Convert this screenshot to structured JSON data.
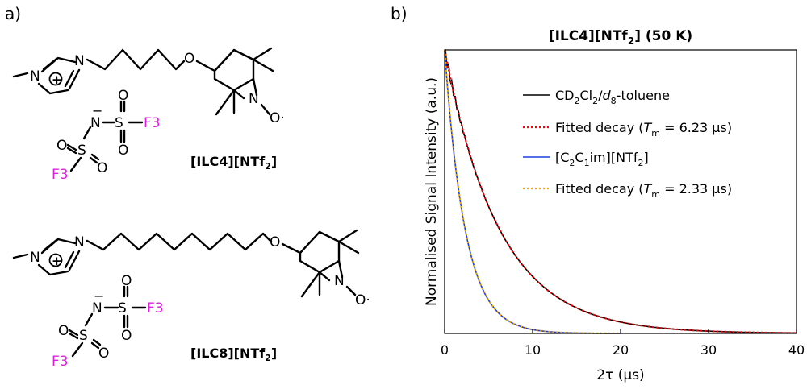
{
  "panels": {
    "a": {
      "label": "a)"
    },
    "b": {
      "label": "b)"
    }
  },
  "structures": [
    {
      "name": "[ILC4][NTf2]",
      "name_parts": {
        "pre": "[ILC4][NTf",
        "sub": "2",
        "post": "]"
      },
      "atoms": {
        "N_ring": "N",
        "N_plus": "N",
        "O_ether": "O",
        "N_nitroxide": "N",
        "O_rad": "O·",
        "charge_plus": "+"
      }
    },
    {
      "name": "[ILC8][NTf2]",
      "name_parts": {
        "pre": "[ILC8][NTf",
        "sub": "2",
        "post": "]"
      },
      "atoms": {
        "N_ring": "N",
        "N_plus": "N",
        "O_ether": "O",
        "N_nitroxide": "N",
        "O_rad": "O·",
        "charge_plus": "+"
      }
    }
  ],
  "anion": {
    "N": "N",
    "S": "S",
    "O": "O",
    "F3": "F3",
    "charge_minus": "−",
    "colors": {
      "fluorine": "#e020e0"
    }
  },
  "chart_data": {
    "type": "line",
    "title": "[ILC4][NTf2] (50 K)",
    "title_parts": {
      "pre": "[ILC4][NTf",
      "sub": "2",
      "post": "] (50 K)"
    },
    "xlabel": "2τ (μs)",
    "ylabel": "Normalised Signal Intensity (a.u.)",
    "xlim": [
      0,
      40
    ],
    "ylim": [
      0,
      1
    ],
    "xticks": [
      "0",
      "10",
      "20",
      "30",
      "40"
    ],
    "grid": false,
    "legend_position": "top-right",
    "series": [
      {
        "name": "CD2Cl2/d8-toluene",
        "legend_parts": [
          "CD",
          "2",
          "Cl",
          "2",
          "/",
          "d",
          "8",
          "-toluene"
        ],
        "color": "#000000",
        "style": "solid",
        "T_m": 6.23,
        "x_max": 40
      },
      {
        "name": "Fitted decay (Tm = 6.23 μs)",
        "legend_parts": {
          "pre": "Fitted decay (",
          "T": "T",
          "sub": "m",
          "post": " = 6.23 μs)"
        },
        "color": "#ff0000",
        "style": "dotted",
        "T_m": 6.23,
        "x_max": 40
      },
      {
        "name": "[C2C1im][NTf2]",
        "legend_parts": [
          "[C",
          "2",
          "C",
          "1",
          "im][NTf",
          "2",
          "]"
        ],
        "color": "#1f3fdf",
        "style": "solid",
        "T_m": 2.33,
        "x_max": 20
      },
      {
        "name": "Fitted decay (Tm = 2.33 μs)",
        "legend_parts": {
          "pre": "Fitted decay (",
          "T": "T",
          "sub": "m",
          "post": " = 2.33 μs)"
        },
        "color": "#f0a800",
        "style": "dotted",
        "T_m": 2.33,
        "x_max": 20
      }
    ]
  }
}
